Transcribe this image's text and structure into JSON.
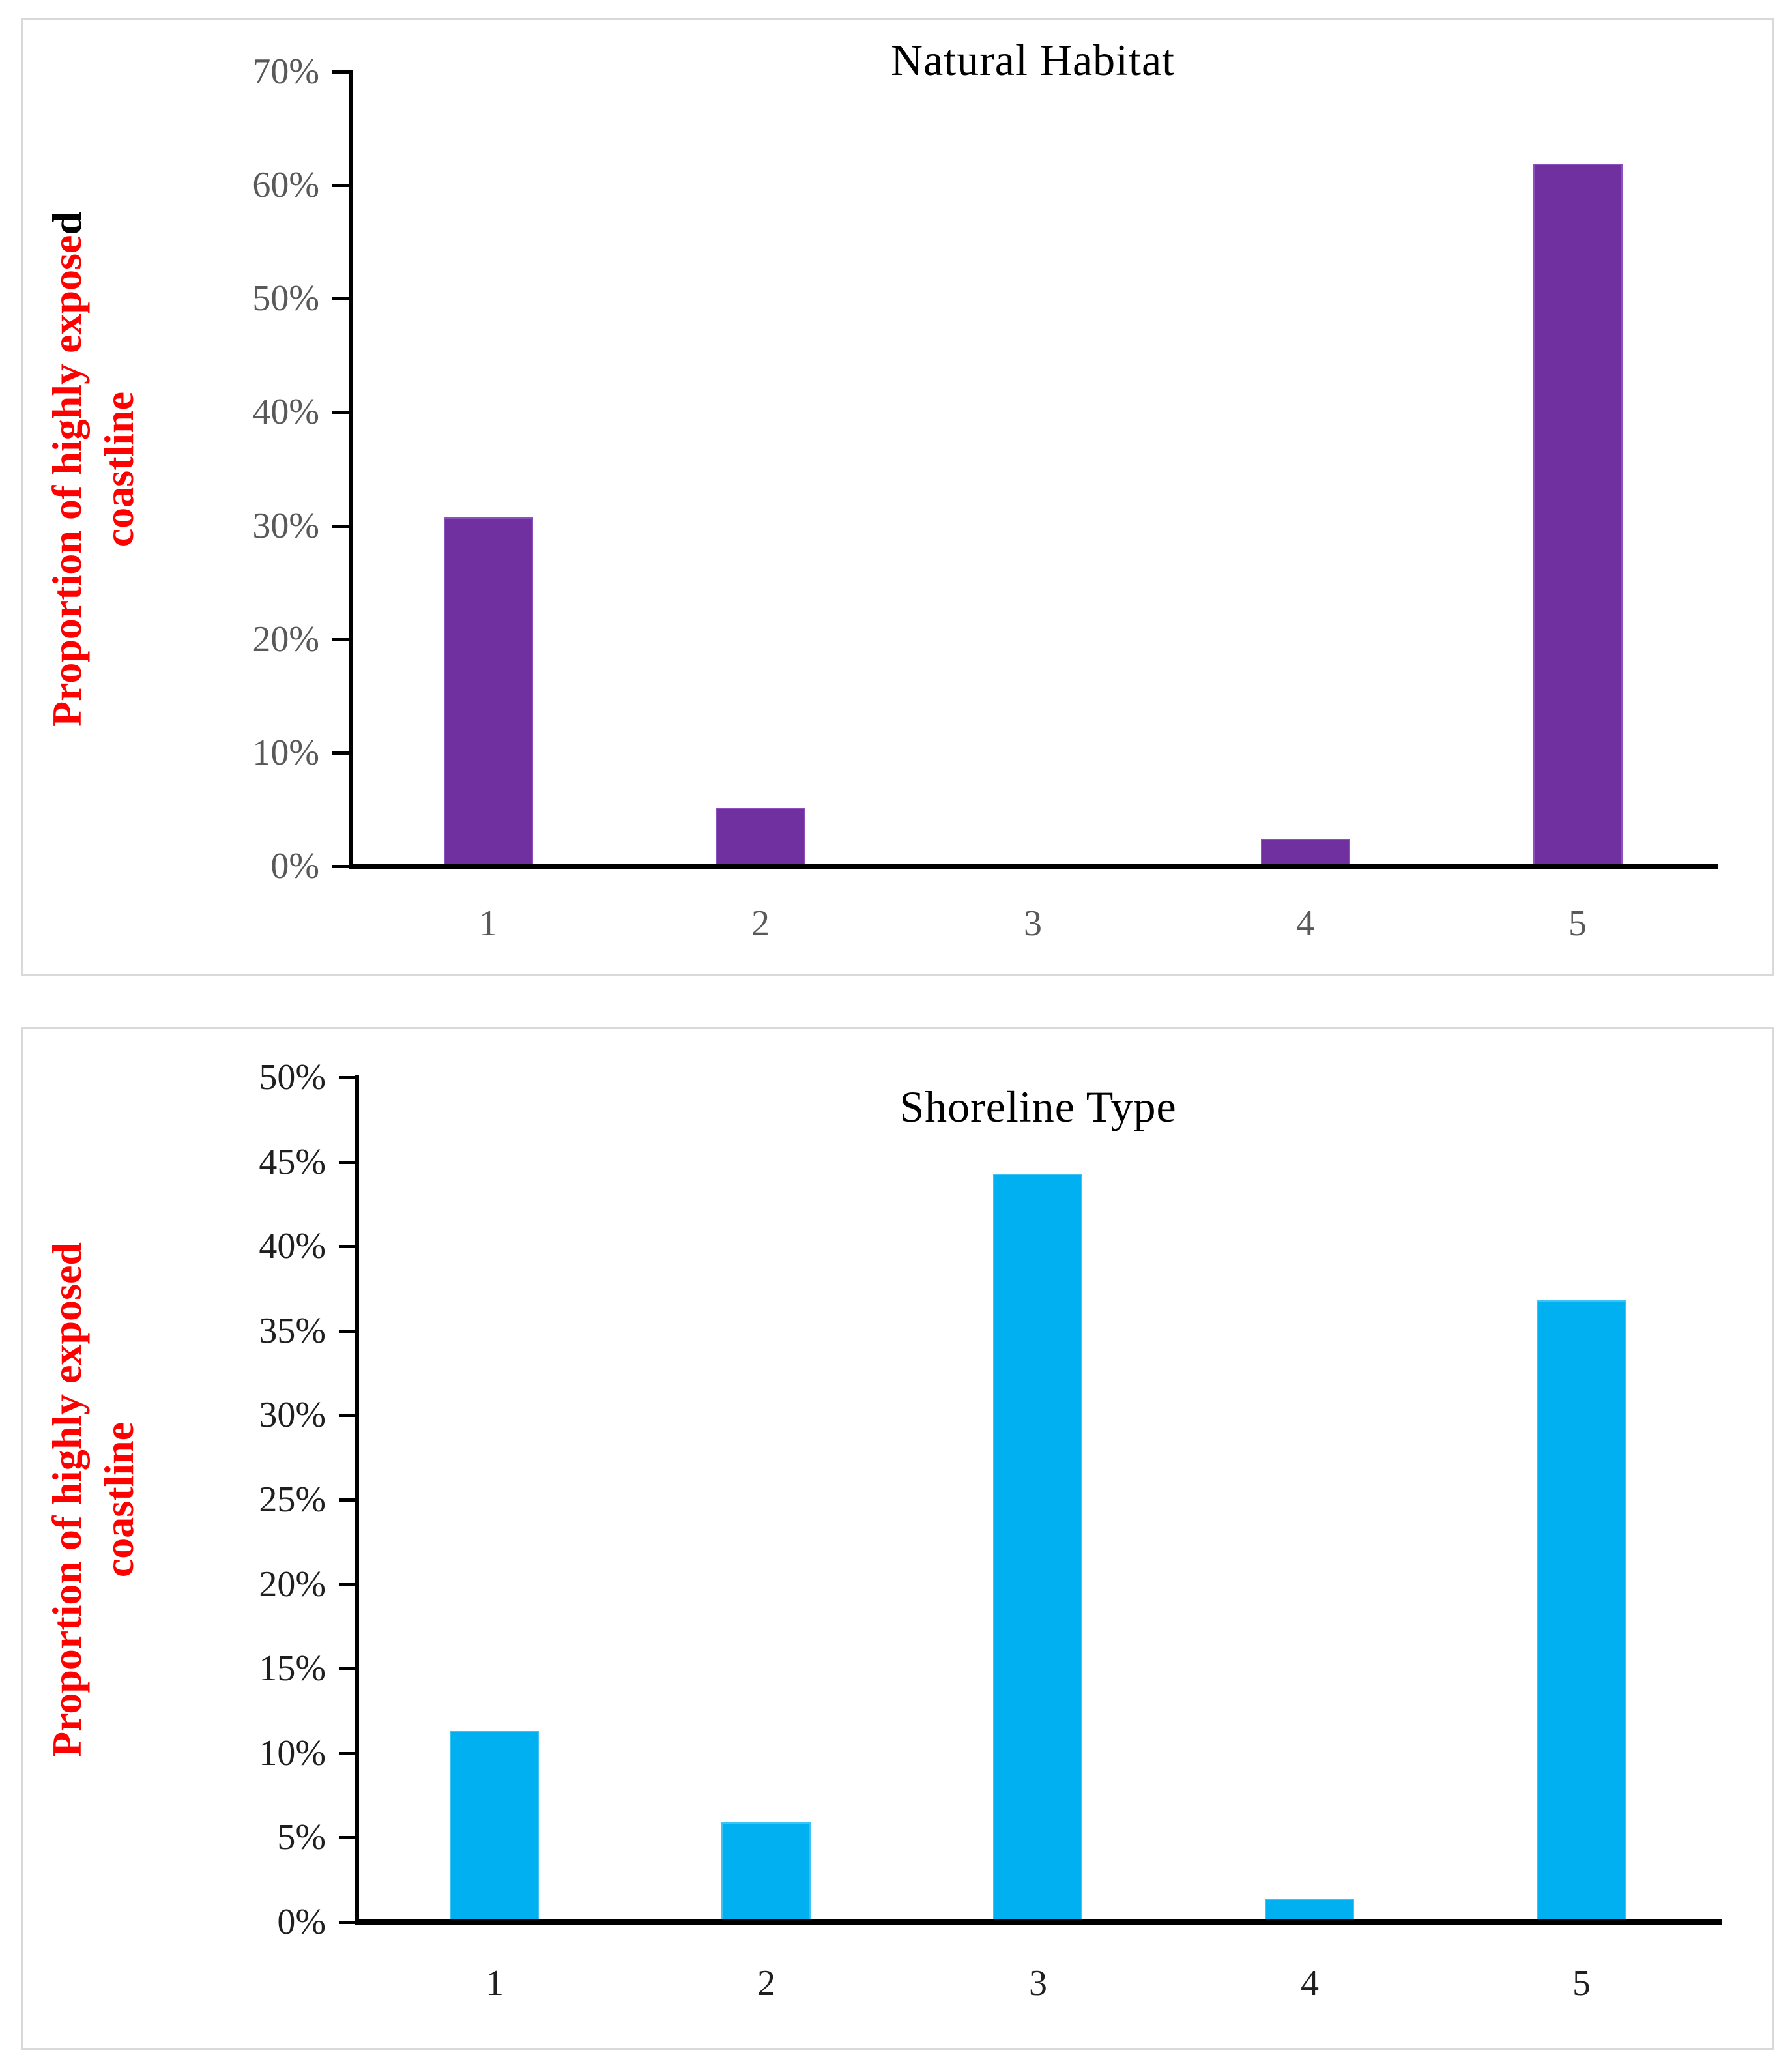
{
  "chart_data": [
    {
      "type": "bar",
      "title": "Natural Habitat",
      "categories": [
        "1",
        "2",
        "3",
        "4",
        "5"
      ],
      "values": [
        30.7,
        5.1,
        0,
        2.4,
        61.9
      ],
      "ylabel": "Proportion of highly exposed coastline",
      "ylabel_line1_red": "Proportion of highly expose",
      "ylabel_line1_black": "d",
      "ylabel_line2": "coastline",
      "yticks": [
        "70%",
        "60%",
        "50%",
        "40%",
        "30%",
        "20%",
        "10%",
        "0%"
      ],
      "ylim": [
        0,
        70
      ],
      "ytick_step": 10,
      "xlabel": "",
      "legend": "none",
      "grid": false,
      "colors": {
        "bar": "#7030A0",
        "bar_border": "#8C50BE",
        "ytick_labels": "#595959",
        "xtick_labels": "#595959",
        "title": "#000000",
        "ylabel": "#FF0000",
        "ylabel_alt": "#000000",
        "axis": "#000000"
      }
    },
    {
      "type": "bar",
      "title": "Shoreline Type",
      "categories": [
        "1",
        "2",
        "3",
        "4",
        "5"
      ],
      "values": [
        11.3,
        5.9,
        44.3,
        1.4,
        36.8
      ],
      "ylabel": "Proportion of highly exposed coastline",
      "ylabel_line1_red": "Proportion of highly exposed",
      "ylabel_line1_black": "",
      "ylabel_line2": "coastline",
      "yticks": [
        "50%",
        "45%",
        "40%",
        "35%",
        "30%",
        "25%",
        "20%",
        "15%",
        "10%",
        "5%",
        "0%"
      ],
      "ylim": [
        0,
        50
      ],
      "ytick_step": 5,
      "xlabel": "",
      "legend": "none",
      "grid": false,
      "colors": {
        "bar": "#00B0F0",
        "bar_border": "#3BC3F4",
        "ytick_labels": "#1f1f1f",
        "xtick_labels": "#1f1f1f",
        "title": "#000000",
        "ylabel": "#FF0000",
        "ylabel_alt": "#000000",
        "axis": "#000000"
      }
    }
  ]
}
